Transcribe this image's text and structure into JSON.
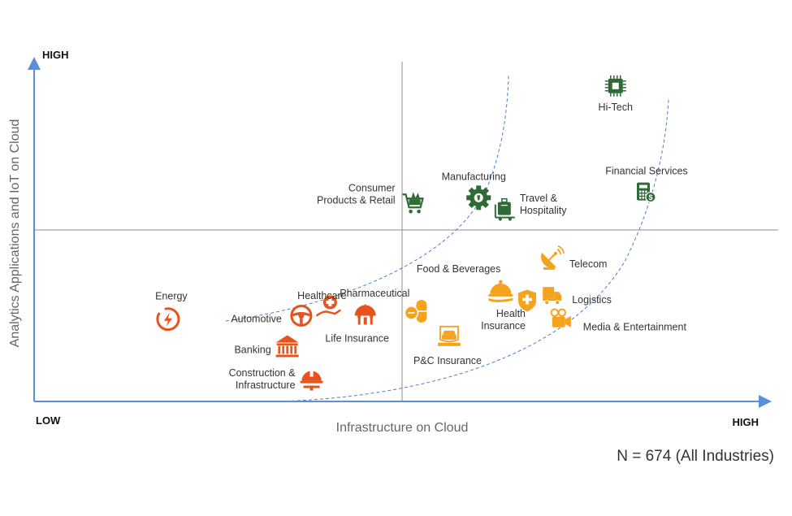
{
  "chart_data": {
    "type": "scatter",
    "xlabel": "Infrastructure on Cloud",
    "ylabel": "Analytics Applications and IoT on Cloud",
    "x_low_label": "LOW",
    "x_high_label": "HIGH",
    "y_high_label": "HIGH",
    "note": "N = 674 (All Industries)",
    "colors": {
      "axis": "#5b8fd9",
      "divider": "#8c8c8c",
      "curve": "#4a7fd0",
      "green": "#2e6b35",
      "red": "#e8531d",
      "orange": "#f5a21e"
    },
    "points": [
      {
        "name": "Hi-Tech",
        "label": [
          "Hi-Tech"
        ],
        "icon": "chip-icon",
        "tier": "green",
        "x": 0.79,
        "y": 0.92
      },
      {
        "name": "Financial Services",
        "label": [
          "Financial Services"
        ],
        "icon": "calculator-icon",
        "tier": "green",
        "x": 0.83,
        "y": 0.61
      },
      {
        "name": "Manufacturing",
        "label": [
          "Manufacturing"
        ],
        "icon": "gear-icon",
        "tier": "green",
        "x": 0.604,
        "y": 0.594
      },
      {
        "name": "Travel & Hospitality",
        "label": [
          "Travel &",
          "Hospitality"
        ],
        "icon": "luggage-icon",
        "tier": "green",
        "x": 0.64,
        "y": 0.56
      },
      {
        "name": "Consumer Products & Retail",
        "label": [
          "Consumer",
          "Products & Retail"
        ],
        "icon": "cart-icon",
        "tier": "green",
        "x": 0.515,
        "y": 0.58
      },
      {
        "name": "Telecom",
        "label": [
          "Telecom"
        ],
        "icon": "satellite-dish-icon",
        "tier": "orange",
        "x": 0.703,
        "y": 0.415
      },
      {
        "name": "Food & Beverages",
        "label": [
          "Food & Beverages"
        ],
        "icon": "cloche-icon",
        "tier": "orange",
        "x": 0.634,
        "y": 0.325
      },
      {
        "name": "Pharmaceutical",
        "label": [
          "Pharmaceutical"
        ],
        "icon": "pill-icon",
        "tier": "orange",
        "x": 0.517,
        "y": 0.263
      },
      {
        "name": "Logistics",
        "label": [
          "Logistics"
        ],
        "icon": "truck-icon",
        "tier": "orange",
        "x": 0.7,
        "y": 0.31
      },
      {
        "name": "Health Insurance",
        "label": [
          "Health",
          "Insurance"
        ],
        "icon": "shield-plus-icon",
        "tier": "orange",
        "x": 0.67,
        "y": 0.295
      },
      {
        "name": "Media & Entertainment",
        "label": [
          "Media & Entertainment"
        ],
        "icon": "camera-icon",
        "tier": "orange",
        "x": 0.715,
        "y": 0.24
      },
      {
        "name": "P&C Insurance",
        "label": [
          "P&C Insurance"
        ],
        "icon": "car-icon",
        "tier": "orange",
        "x": 0.564,
        "y": 0.19
      },
      {
        "name": "Life Insurance",
        "label": [
          "Life Insurance"
        ],
        "icon": "umbrella-icon",
        "tier": "red",
        "x": 0.45,
        "y": 0.25
      },
      {
        "name": "Healthcare",
        "label": [
          "Healthcare"
        ],
        "icon": "hand-plus-icon",
        "tier": "red",
        "x": 0.4,
        "y": 0.27
      },
      {
        "name": "Automotive",
        "label": [
          "Automotive"
        ],
        "icon": "steering-wheel-icon",
        "tier": "red",
        "x": 0.363,
        "y": 0.25
      },
      {
        "name": "Banking",
        "label": [
          "Banking"
        ],
        "icon": "bank-icon",
        "tier": "red",
        "x": 0.344,
        "y": 0.16
      },
      {
        "name": "Energy",
        "label": [
          "Energy"
        ],
        "icon": "lightning-icon",
        "tier": "red",
        "x": 0.182,
        "y": 0.24
      },
      {
        "name": "Construction & Infrastructure",
        "label": [
          "Construction &",
          "Infrastructure"
        ],
        "icon": "hardhat-icon",
        "tier": "red",
        "x": 0.377,
        "y": 0.065
      }
    ]
  }
}
